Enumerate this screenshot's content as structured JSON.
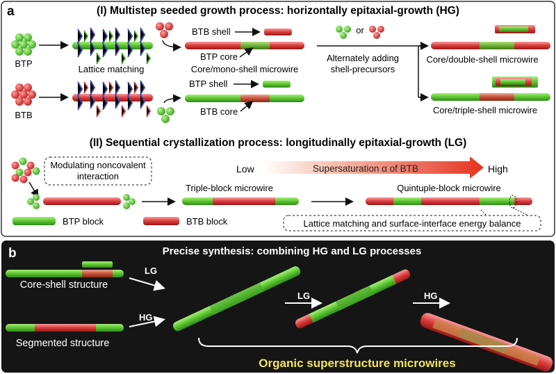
{
  "panel_a": {
    "letter": "a",
    "section1_title": "(I) Multistep seeded growth process: horizontally epitaxial-growth (HG)",
    "label_btp": "BTP",
    "label_btb": "BTB",
    "lattice_matching": "Lattice matching",
    "btb_shell": "BTB shell",
    "btp_core": "BTP core",
    "core_mono_shell": "Core/mono-shell microwire",
    "btp_shell": "BTP shell",
    "btb_core": "BTB core",
    "or": "or",
    "alternately_1": "Alternately adding",
    "alternately_2": "shell-precursors",
    "core_double_shell": "Core/double-shell microwire",
    "core_triple_shell": "Core/triple-shell microwire",
    "section2_title": "(II) Sequential crystallization process: longitudinally epitaxial-growth (LG)",
    "modulating_1": "Modulating noncovalent",
    "modulating_2": "interaction",
    "low": "Low",
    "high": "High",
    "supersaturation": "Supersaturation α of BTB",
    "triple_block": "Triple-block microwire",
    "quintuple_block": "Quintuple-block microwire",
    "btp_block": "BTP block",
    "btb_block": "BTB block",
    "lattice_balance": "Lattice matching and surface-interface energy balance"
  },
  "panel_b": {
    "letter": "b",
    "title": "Precise synthesis: combining HG and LG processes",
    "core_shell": "Core-shell structure",
    "segmented": "Segmented structure",
    "lg1": "LG",
    "hg1": "HG",
    "lg2": "LG",
    "hg2": "HG",
    "footer": "Organic superstructure microwires"
  },
  "colors": {
    "green": "#5cc431",
    "red": "#dc3b3b",
    "blue": "#3a4bb0",
    "dark": "#151515",
    "yellow": "#f3e45a"
  }
}
